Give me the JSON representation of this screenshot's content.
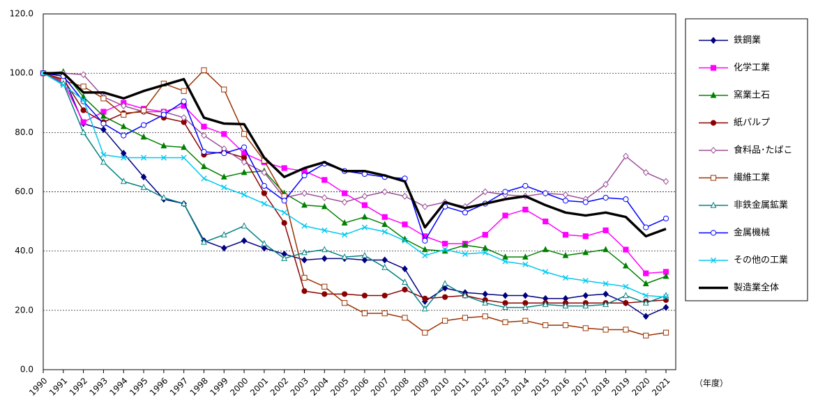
{
  "chart_data": {
    "type": "line",
    "x_note": "（年度）",
    "categories": [
      "1990",
      "1991",
      "1992",
      "1993",
      "1994",
      "1995",
      "1996",
      "1997",
      "1998",
      "1999",
      "2000",
      "2001",
      "2002",
      "2003",
      "2004",
      "2005",
      "2006",
      "2007",
      "2008",
      "2009",
      "2010",
      "2011",
      "2012",
      "2013",
      "2014",
      "2015",
      "2016",
      "2017",
      "2018",
      "2019",
      "2020",
      "2021"
    ],
    "ylim": [
      0,
      120
    ],
    "yticks": [
      {
        "value": 0,
        "label": "0.0"
      },
      {
        "value": 20,
        "label": "20.0"
      },
      {
        "value": 40,
        "label": "40.0"
      },
      {
        "value": 60,
        "label": "60.0"
      },
      {
        "value": 80,
        "label": "80.0"
      },
      {
        "value": 100,
        "label": "100.0"
      },
      {
        "value": 120,
        "label": "120.0"
      }
    ],
    "grid": true,
    "legend": "right",
    "series": [
      {
        "name": "鉄鋼業",
        "color": "#000080",
        "marker": "diamond",
        "marker_fill": "solid",
        "line_width": 1.5,
        "values": [
          100,
          99,
          83,
          81,
          73,
          65,
          57.5,
          56,
          43.5,
          41,
          43.5,
          41,
          39,
          37,
          37.5,
          37.5,
          37,
          37,
          34,
          23,
          27.5,
          26,
          25.5,
          25,
          25,
          24,
          24,
          25,
          25.5,
          22.5,
          18,
          21
        ]
      },
      {
        "name": "化学工業",
        "color": "#ff00ff",
        "marker": "square",
        "marker_fill": "solid",
        "line_width": 1.5,
        "values": [
          100,
          97,
          83.5,
          87,
          90,
          88,
          87,
          89,
          82,
          79.5,
          73,
          70,
          68,
          67,
          64,
          59.5,
          55.5,
          51.5,
          49,
          45,
          42.5,
          42.5,
          45.5,
          52,
          54,
          50,
          45.5,
          45,
          47,
          40.5,
          32.5,
          33
        ]
      },
      {
        "name": "窯業土石",
        "color": "#008000",
        "marker": "triangle",
        "marker_fill": "solid",
        "line_width": 1.5,
        "values": [
          100,
          100.5,
          92,
          85.5,
          82,
          78.5,
          75.5,
          75,
          68.5,
          65,
          66.5,
          67,
          59.5,
          55.5,
          55,
          49.5,
          51.5,
          49,
          44,
          40.5,
          40,
          42,
          41,
          38,
          38,
          40.5,
          38.5,
          39.5,
          40.5,
          35,
          29,
          31.5
        ]
      },
      {
        "name": "紙パルプ",
        "color": "#8b0000",
        "marker": "circle",
        "marker_fill": "solid",
        "line_width": 1.5,
        "values": [
          100,
          98,
          87.5,
          83.5,
          86.5,
          87,
          85,
          83.5,
          72.5,
          73.5,
          71.5,
          59.5,
          49.5,
          26.5,
          25.5,
          25.5,
          25,
          25,
          27,
          24,
          24.5,
          25,
          23.5,
          22.5,
          22.5,
          22.5,
          22.5,
          22.5,
          22.5,
          22.5,
          23,
          23.5
        ]
      },
      {
        "name": "食料品･たばこ",
        "color": "#9b4f96",
        "marker": "diamond",
        "marker_fill": "open",
        "line_width": 1.5,
        "values": [
          100,
          100,
          99.5,
          92,
          89,
          87,
          87,
          85,
          79,
          74.5,
          70,
          66.5,
          58,
          59.5,
          58,
          56.5,
          58.5,
          60,
          58.5,
          55,
          56.5,
          55,
          60,
          59,
          58.5,
          59.5,
          59,
          57.5,
          62.5,
          72,
          66.5,
          63.5
        ]
      },
      {
        "name": "繊維工業",
        "color": "#993300",
        "marker": "square",
        "marker_fill": "open",
        "line_width": 1.5,
        "values": [
          100,
          97.5,
          95.5,
          91.5,
          86,
          87.5,
          96.5,
          94,
          101,
          94.5,
          79.5,
          70.5,
          58.5,
          31,
          28,
          22.5,
          19,
          19,
          17.5,
          12.5,
          16.5,
          17.5,
          18,
          16,
          16.5,
          15,
          15,
          14,
          13.5,
          13.5,
          11.5,
          12.5
        ]
      },
      {
        "name": "非鉄金属鉱業",
        "color": "#008080",
        "marker": "triangle",
        "marker_fill": "open",
        "line_width": 1.5,
        "values": [
          100,
          96.5,
          80,
          70,
          63.5,
          61.5,
          58,
          56,
          43,
          45.5,
          48.5,
          42.5,
          37.5,
          39.5,
          40.5,
          38,
          38.5,
          34.5,
          29.5,
          20.5,
          29,
          25,
          22.5,
          21,
          21,
          22,
          21.5,
          21.5,
          22,
          25,
          22.5,
          25
        ]
      },
      {
        "name": "金属機械",
        "color": "#0000ff",
        "marker": "circle",
        "marker_fill": "open",
        "line_width": 1.5,
        "values": [
          100,
          99,
          90.5,
          83,
          79,
          82.5,
          86,
          90.5,
          73.5,
          73,
          75,
          62,
          57,
          65.5,
          69.5,
          67,
          66,
          65,
          64.5,
          43.5,
          55,
          53,
          56,
          60,
          62,
          59.5,
          57,
          56.5,
          58,
          57.5,
          48,
          51
        ]
      },
      {
        "name": "その他の工業",
        "color": "#00c8f0",
        "marker": "x",
        "marker_fill": "solid",
        "line_width": 1.5,
        "values": [
          100,
          96,
          91,
          72.5,
          71.5,
          71.5,
          71.5,
          71.5,
          64.5,
          61.5,
          59,
          56,
          53,
          48.5,
          47,
          45.5,
          48,
          46.5,
          43.5,
          38.5,
          40.5,
          39,
          39.5,
          36.5,
          35.5,
          33,
          31,
          30,
          29,
          28,
          25,
          24.5
        ]
      },
      {
        "name": "製造業全体",
        "color": "#000000",
        "marker": "none",
        "marker_fill": "solid",
        "line_width": 3.5,
        "values": [
          100,
          100,
          93.5,
          93.5,
          91.5,
          94,
          96,
          98,
          85,
          83,
          82.8,
          71.5,
          65,
          68,
          70,
          67,
          67,
          65.5,
          63.5,
          48,
          56.5,
          54.5,
          56,
          57.5,
          58.5,
          55.5,
          53,
          52,
          53,
          51.5,
          45,
          47.5
        ]
      }
    ]
  }
}
